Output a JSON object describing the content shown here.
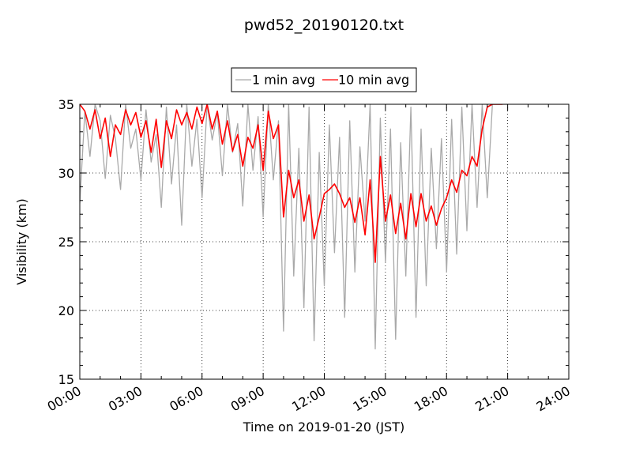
{
  "chart_data": {
    "type": "line",
    "title": "pwd52_20190120.txt",
    "xlabel": "Time on 2019-01-20 (JST)",
    "ylabel": "Visibility (km)",
    "x_unit": "hours",
    "xlim": [
      0,
      24
    ],
    "ylim": [
      15,
      35
    ],
    "grid": true,
    "grid_style": "dotted",
    "legend_position": "top-center (above plot)",
    "x_ticks": [
      0,
      3,
      6,
      9,
      12,
      15,
      18,
      21,
      24
    ],
    "x_tick_labels": [
      "00:00",
      "03:00",
      "06:00",
      "09:00",
      "12:00",
      "15:00",
      "18:00",
      "21:00",
      "24:00"
    ],
    "y_ticks": [
      15,
      20,
      25,
      30,
      35
    ],
    "y_tick_labels": [
      "15",
      "20",
      "25",
      "30",
      "35"
    ],
    "series": [
      {
        "name": "1 min avg",
        "color": "#a9a9a9",
        "x": [
          0,
          0.25,
          0.5,
          0.75,
          1,
          1.25,
          1.5,
          1.75,
          2,
          2.25,
          2.5,
          2.75,
          3,
          3.25,
          3.5,
          3.75,
          4,
          4.25,
          4.5,
          4.75,
          5,
          5.25,
          5.5,
          5.75,
          6,
          6.25,
          6.5,
          6.75,
          7,
          7.25,
          7.5,
          7.75,
          8,
          8.25,
          8.5,
          8.75,
          9,
          9.25,
          9.5,
          9.75,
          10,
          10.25,
          10.5,
          10.75,
          11,
          11.25,
          11.5,
          11.75,
          12,
          12.25,
          12.5,
          12.75,
          13,
          13.25,
          13.5,
          13.75,
          14,
          14.25,
          14.5,
          14.75,
          15,
          15.25,
          15.5,
          15.75,
          16,
          16.25,
          16.5,
          16.75,
          17,
          17.25,
          17.5,
          17.75,
          18,
          18.25,
          18.5,
          18.75,
          19,
          19.25,
          19.5,
          19.75,
          20,
          20.25,
          20.5,
          20.75,
          21
        ],
        "y": [
          27.8,
          34.5,
          31.2,
          35,
          33.8,
          29.6,
          34.2,
          32.5,
          28.8,
          35,
          31.8,
          33.2,
          29.5,
          34.6,
          30.8,
          32.8,
          27.5,
          34.8,
          29.2,
          33.5,
          26.2,
          35,
          30.5,
          33.9,
          28.2,
          35,
          32.4,
          34.4,
          29.8,
          35,
          31.5,
          33.6,
          27.6,
          35,
          30.2,
          34.1,
          26.8,
          35,
          29.5,
          33.8,
          18.5,
          35,
          22.5,
          31.8,
          20.2,
          34.8,
          17.8,
          31.5,
          21.8,
          33.5,
          24.2,
          32.6,
          19.5,
          33.8,
          22.8,
          31.9,
          26.5,
          35,
          17.2,
          34,
          23.5,
          33.2,
          17.9,
          32.2,
          22.5,
          34.8,
          19.5,
          33.2,
          21.8,
          31.8,
          24.5,
          32.5,
          22.8,
          33.9,
          24.1,
          34.8,
          25.8,
          35,
          27.5,
          35,
          28.2,
          35,
          35,
          35,
          35
        ]
      },
      {
        "name": "10 min avg",
        "color": "#ff0000",
        "x": [
          0,
          0.25,
          0.5,
          0.75,
          1,
          1.25,
          1.5,
          1.75,
          2,
          2.25,
          2.5,
          2.75,
          3,
          3.25,
          3.5,
          3.75,
          4,
          4.25,
          4.5,
          4.75,
          5,
          5.25,
          5.5,
          5.75,
          6,
          6.25,
          6.5,
          6.75,
          7,
          7.25,
          7.5,
          7.75,
          8,
          8.25,
          8.5,
          8.75,
          9,
          9.25,
          9.5,
          9.75,
          10,
          10.25,
          10.5,
          10.75,
          11,
          11.25,
          11.5,
          11.75,
          12,
          12.25,
          12.5,
          12.75,
          13,
          13.25,
          13.5,
          13.75,
          14,
          14.25,
          14.5,
          14.75,
          15,
          15.25,
          15.5,
          15.75,
          16,
          16.25,
          16.5,
          16.75,
          17,
          17.25,
          17.5,
          17.75,
          18,
          18.25,
          18.5,
          18.75,
          19,
          19.25,
          19.5,
          19.75,
          20,
          20.25,
          20.5,
          20.75
        ],
        "y": [
          35,
          34.5,
          33.2,
          34.6,
          32.5,
          34,
          31.2,
          33.5,
          32.8,
          34.6,
          33.5,
          34.4,
          32.6,
          33.8,
          31.5,
          33.9,
          30.4,
          33.8,
          32.5,
          34.6,
          33.5,
          34.4,
          33.2,
          34.8,
          33.6,
          35,
          33.2,
          34.5,
          32.1,
          33.8,
          31.6,
          32.8,
          30.5,
          32.6,
          31.8,
          33.5,
          30.2,
          34.5,
          32.5,
          33.5,
          26.8,
          30.2,
          28.2,
          29.5,
          26.5,
          28.4,
          25.2,
          26.8,
          28.5,
          28.8,
          29.2,
          28.5,
          27.5,
          28.2,
          26.4,
          28.2,
          25.5,
          29.5,
          23.5,
          31.2,
          26.5,
          28.4,
          25.6,
          27.8,
          25.2,
          28.5,
          26.1,
          28.5,
          26.5,
          27.6,
          26.2,
          27.4,
          28.2,
          29.5,
          28.6,
          30.2,
          29.8,
          31.2,
          30.5,
          33.2,
          34.8,
          35,
          35,
          35
        ]
      }
    ]
  }
}
